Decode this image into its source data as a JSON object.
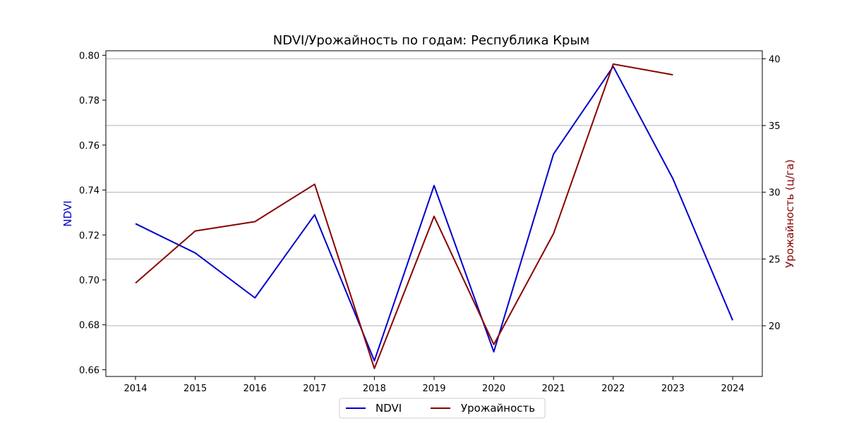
{
  "chart_data": {
    "type": "line",
    "title": "NDVI/Урожайность по годам: Республика Крым",
    "xlabel": "",
    "ylabel_left": "NDVI",
    "ylabel_right": "Урожайность (ц/га)",
    "x": [
      "2014",
      "2015",
      "2016",
      "2017",
      "2018",
      "2019",
      "2020",
      "2021",
      "2022",
      "2023",
      "2024"
    ],
    "ylim_left": [
      0.657,
      0.802
    ],
    "ylim_right": [
      16.2,
      40.6
    ],
    "yticks_left": [
      "0.66",
      "0.68",
      "0.70",
      "0.72",
      "0.74",
      "0.76",
      "0.78",
      "0.80"
    ],
    "yticks_right": [
      "20",
      "25",
      "30",
      "35",
      "40"
    ],
    "grid": "horizontal lines at right-axis ticks",
    "legend_position": "bottom-center",
    "series": [
      {
        "name": "NDVI",
        "axis": "left",
        "color": "#0000cc",
        "values": [
          0.725,
          0.712,
          0.692,
          0.729,
          0.664,
          0.742,
          0.668,
          0.756,
          0.795,
          0.745,
          0.682
        ]
      },
      {
        "name": "Урожайность",
        "axis": "right",
        "color": "#8b0000",
        "values": [
          23.2,
          27.1,
          27.8,
          30.6,
          16.8,
          28.2,
          18.6,
          26.9,
          39.6,
          38.8,
          null
        ]
      }
    ]
  }
}
